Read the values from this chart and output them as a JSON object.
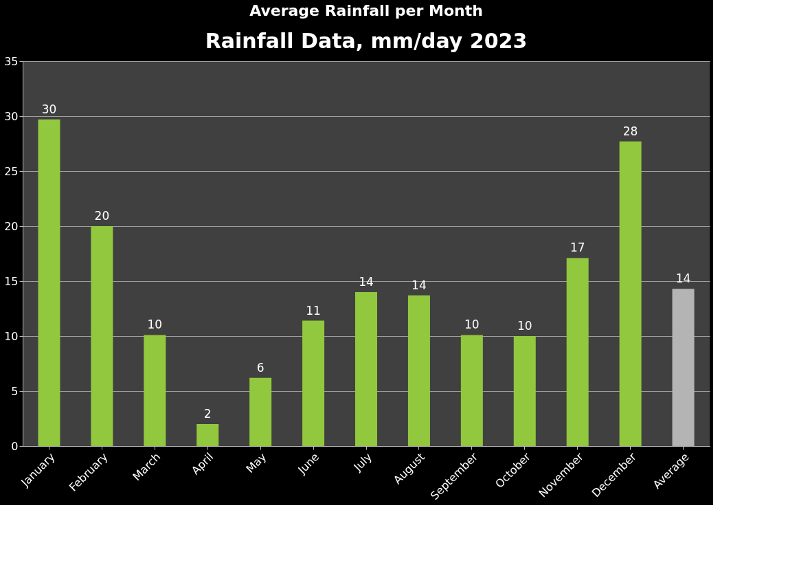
{
  "chart_data": {
    "type": "bar",
    "title": "Average Rainfall per Month",
    "subtitle": "Rainfall Data, mm/day 2023",
    "categories": [
      "January",
      "February",
      "March",
      "April",
      "May",
      "June",
      "July",
      "August",
      "September",
      "October",
      "November",
      "December",
      "Average"
    ],
    "values": [
      29.7,
      20,
      10.1,
      2,
      6.2,
      11.4,
      14,
      13.7,
      10.1,
      10,
      17.1,
      27.7,
      14.3
    ],
    "value_labels": [
      "30",
      "20",
      "10",
      "2",
      "6",
      "11",
      "14",
      "14",
      "10",
      "10",
      "17",
      "28",
      "14"
    ],
    "colors": [
      "#92c83e",
      "#92c83e",
      "#92c83e",
      "#92c83e",
      "#92c83e",
      "#92c83e",
      "#92c83e",
      "#92c83e",
      "#92c83e",
      "#92c83e",
      "#92c83e",
      "#92c83e",
      "#b4b4b4"
    ],
    "ylim": [
      0,
      35
    ],
    "yticks": [
      0,
      5,
      10,
      15,
      20,
      25,
      30,
      35
    ],
    "grid": "y",
    "legend": false
  }
}
